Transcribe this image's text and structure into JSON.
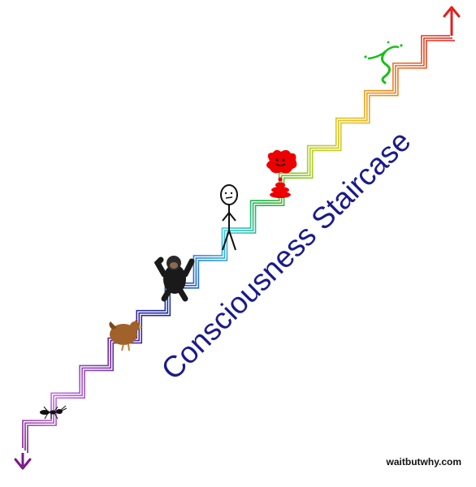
{
  "diagram": {
    "title": "Consciousness Staircase",
    "credit": "waitbutwhy.com",
    "colors": {
      "title": "#1a1a8c",
      "top_arrow": "#e02020",
      "bottom_arrow": "#7a1a8a",
      "step_gradient": [
        "#7a1a8a",
        "#c070e0",
        "#6a2aa0",
        "#1a2a9a",
        "#2a7ad0",
        "#40c8e0",
        "#20b040",
        "#b0d020",
        "#e8c020",
        "#e88020",
        "#e02020"
      ]
    },
    "beings": [
      {
        "name": "ant",
        "icon": "ant-icon"
      },
      {
        "name": "chicken",
        "icon": "chicken-icon"
      },
      {
        "name": "chimpanzee",
        "icon": "chimp-icon"
      },
      {
        "name": "human",
        "icon": "stick-figure-icon"
      },
      {
        "name": "red creature",
        "icon": "red-blob-icon"
      },
      {
        "name": "green being",
        "icon": "green-squiggle-icon"
      }
    ]
  }
}
